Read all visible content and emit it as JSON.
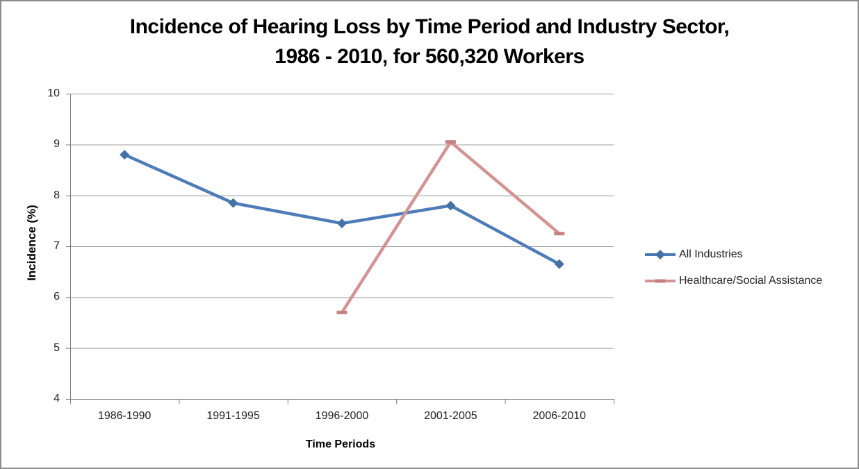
{
  "window": {
    "background_color": "#ffffff",
    "border_color": "#8C8C8C"
  },
  "chart_data": {
    "type": "line",
    "title_line1": "Incidence of Hearing Loss by Time Period and Industry Sector,",
    "title_line2": "1986 - 2010, for 560,320 Workers",
    "xlabel": "Time Periods",
    "ylabel": "Incidence (%)",
    "categories": [
      "1986-1990",
      "1991-1995",
      "1996-2000",
      "2001-2005",
      "2006-2010"
    ],
    "yticks": [
      10,
      9,
      8,
      7,
      6,
      5,
      4
    ],
    "ylim": [
      4,
      10
    ],
    "grid": true,
    "legend_position": "right",
    "colors": {
      "gridline": "#9D9D9D",
      "axis": "#7A7A7A",
      "tick_label": "#1f1f1f"
    },
    "series": [
      {
        "name": "All Industries",
        "color": "#4E7CB8",
        "marker": "diamond",
        "marker_color": "#4470A6",
        "values": [
          8.8,
          7.85,
          7.45,
          7.8,
          6.65
        ]
      },
      {
        "name": "Healthcare/Social Assistance",
        "color": "#D29492",
        "marker": "dash",
        "marker_color": "#C5817F",
        "values": [
          null,
          null,
          5.7,
          9.05,
          7.25
        ]
      }
    ]
  }
}
